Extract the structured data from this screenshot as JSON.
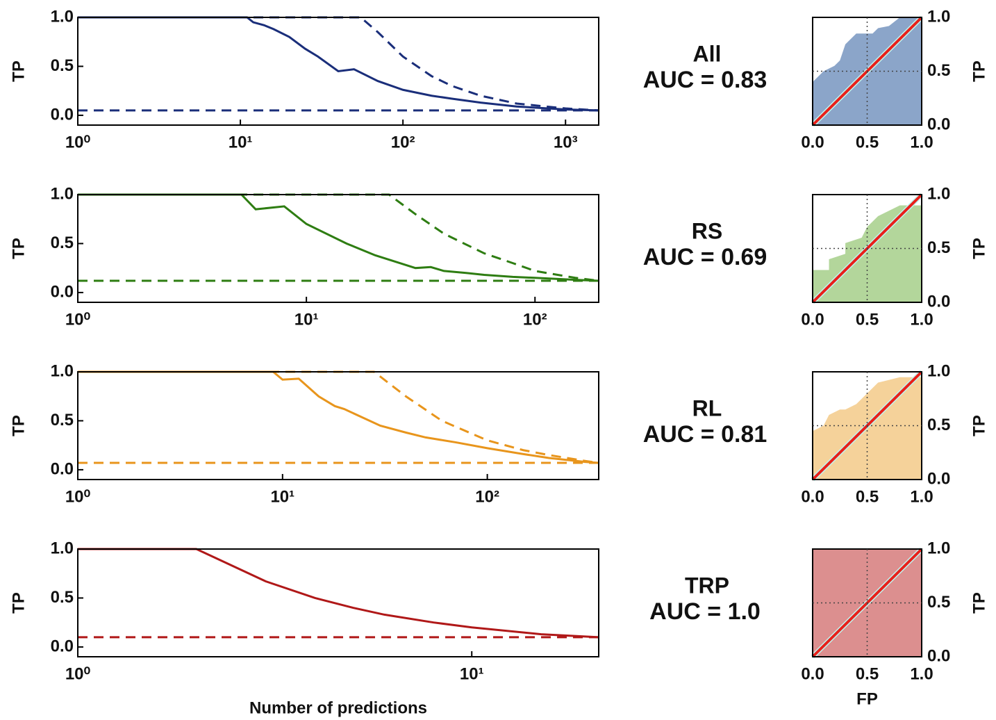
{
  "chart_data": [
    {
      "type": "line",
      "ylabel": "TP",
      "xscale": "log",
      "xlim": [
        1,
        1600
      ],
      "ylim": [
        -0.1,
        1.0
      ],
      "xticks": [
        {
          "value": 1,
          "label": "10⁰"
        },
        {
          "value": 10,
          "label": "10¹"
        },
        {
          "value": 100,
          "label": "10²"
        },
        {
          "value": 1000,
          "label": "10³"
        }
      ],
      "yticks": [
        {
          "value": 0,
          "label": "0.0"
        },
        {
          "value": 0.5,
          "label": "0.5"
        },
        {
          "value": 1,
          "label": "1.0"
        }
      ],
      "series": [
        {
          "color": "#1a2e7a",
          "dashed": false,
          "x": [
            1,
            11,
            12,
            14,
            16,
            20,
            25,
            30,
            40,
            50,
            70,
            100,
            150,
            200,
            300,
            500,
            1000,
            1600
          ],
          "values": [
            1,
            1,
            0.95,
            0.92,
            0.88,
            0.8,
            0.68,
            0.6,
            0.45,
            0.47,
            0.35,
            0.26,
            0.2,
            0.17,
            0.13,
            0.09,
            0.06,
            0.05
          ]
        },
        {
          "color": "#1a2e7a",
          "dashed": true,
          "x": [
            1,
            55,
            70,
            100,
            150,
            200,
            300,
            500,
            1000,
            1600
          ],
          "values": [
            1,
            1,
            0.85,
            0.6,
            0.4,
            0.3,
            0.2,
            0.12,
            0.07,
            0.05
          ]
        },
        {
          "color": "#1a2e7a",
          "dashed": true,
          "x": [
            1,
            1600
          ],
          "values": [
            0.05,
            0.05
          ]
        }
      ]
    },
    {
      "type": "area",
      "title": "All",
      "annotation": "AUC = 0.83",
      "ylabel": "TP",
      "color": "#8ba5c9",
      "grid": "dotted",
      "xlim": [
        0,
        1
      ],
      "ylim": [
        0,
        1
      ],
      "xticks": [
        {
          "value": 0,
          "label": "0.0"
        },
        {
          "value": 0.5,
          "label": "0.5"
        },
        {
          "value": 1,
          "label": "1.0"
        }
      ],
      "yticks": [
        {
          "value": 0,
          "label": "0.0"
        },
        {
          "value": 0.5,
          "label": "0.5"
        },
        {
          "value": 1,
          "label": "1.0"
        }
      ],
      "x": [
        0,
        0,
        0.05,
        0.1,
        0.2,
        0.25,
        0.3,
        0.35,
        0.4,
        0.55,
        0.6,
        0.7,
        0.8,
        1
      ],
      "values": [
        0,
        0.4,
        0.45,
        0.5,
        0.55,
        0.6,
        0.75,
        0.8,
        0.85,
        0.85,
        0.9,
        0.92,
        1,
        1
      ]
    },
    {
      "type": "line",
      "ylabel": "TP",
      "xscale": "log",
      "xlim": [
        1,
        190
      ],
      "ylim": [
        -0.1,
        1.0
      ],
      "xticks": [
        {
          "value": 1,
          "label": "10⁰"
        },
        {
          "value": 10,
          "label": "10¹"
        },
        {
          "value": 100,
          "label": "10²"
        }
      ],
      "yticks": [
        {
          "value": 0,
          "label": "0.0"
        },
        {
          "value": 0.5,
          "label": "0.5"
        },
        {
          "value": 1,
          "label": "1.0"
        }
      ],
      "series": [
        {
          "color": "#2e7d12",
          "dashed": false,
          "x": [
            1,
            5.2,
            6,
            8,
            10,
            15,
            20,
            30,
            35,
            40,
            50,
            60,
            80,
            100,
            150,
            190
          ],
          "values": [
            1,
            1,
            0.85,
            0.88,
            0.7,
            0.5,
            0.38,
            0.25,
            0.26,
            0.22,
            0.2,
            0.18,
            0.16,
            0.15,
            0.13,
            0.12
          ]
        },
        {
          "color": "#2e7d12",
          "dashed": true,
          "x": [
            1,
            23,
            30,
            40,
            60,
            80,
            100,
            150,
            190
          ],
          "values": [
            1,
            1,
            0.8,
            0.6,
            0.4,
            0.3,
            0.22,
            0.15,
            0.12
          ]
        },
        {
          "color": "#2e7d12",
          "dashed": true,
          "x": [
            1,
            190
          ],
          "values": [
            0.12,
            0.12
          ]
        }
      ]
    },
    {
      "type": "area",
      "title": "RS",
      "annotation": "AUC = 0.69",
      "ylabel": "TP",
      "color": "#b3d69b",
      "grid": "dotted",
      "xlim": [
        0,
        1
      ],
      "ylim": [
        0,
        1
      ],
      "xticks": [
        {
          "value": 0,
          "label": "0.0"
        },
        {
          "value": 0.5,
          "label": "0.5"
        },
        {
          "value": 1,
          "label": "1.0"
        }
      ],
      "yticks": [
        {
          "value": 0,
          "label": "0.0"
        },
        {
          "value": 0.5,
          "label": "0.5"
        },
        {
          "value": 1,
          "label": "1.0"
        }
      ],
      "x": [
        0,
        0,
        0.15,
        0.15,
        0.3,
        0.3,
        0.45,
        0.5,
        0.6,
        0.8,
        1
      ],
      "values": [
        0,
        0.3,
        0.3,
        0.4,
        0.45,
        0.55,
        0.6,
        0.7,
        0.8,
        0.9,
        0.9
      ]
    },
    {
      "type": "line",
      "ylabel": "TP",
      "xscale": "log",
      "xlim": [
        1,
        350
      ],
      "ylim": [
        -0.1,
        1.0
      ],
      "xticks": [
        {
          "value": 1,
          "label": "10⁰"
        },
        {
          "value": 10,
          "label": "10¹"
        },
        {
          "value": 100,
          "label": "10²"
        }
      ],
      "yticks": [
        {
          "value": 0,
          "label": "0.0"
        },
        {
          "value": 0.5,
          "label": "0.5"
        },
        {
          "value": 1,
          "label": "1.0"
        }
      ],
      "series": [
        {
          "color": "#e8951c",
          "dashed": false,
          "x": [
            1,
            9,
            10,
            12,
            15,
            18,
            20,
            30,
            40,
            50,
            70,
            100,
            150,
            200,
            300,
            350
          ],
          "values": [
            1,
            1,
            0.92,
            0.93,
            0.75,
            0.65,
            0.62,
            0.45,
            0.38,
            0.33,
            0.28,
            0.22,
            0.16,
            0.12,
            0.08,
            0.07
          ]
        },
        {
          "color": "#e8951c",
          "dashed": true,
          "x": [
            1,
            28,
            40,
            60,
            100,
            150,
            200,
            300,
            350
          ],
          "values": [
            1,
            1,
            0.75,
            0.5,
            0.3,
            0.2,
            0.15,
            0.09,
            0.07
          ]
        },
        {
          "color": "#e8951c",
          "dashed": true,
          "x": [
            1,
            350
          ],
          "values": [
            0.07,
            0.07
          ]
        }
      ]
    },
    {
      "type": "area",
      "title": "RL",
      "annotation": "AUC = 0.81",
      "ylabel": "TP",
      "color": "#f5d29a",
      "grid": "dotted",
      "xlim": [
        0,
        1
      ],
      "ylim": [
        0,
        1
      ],
      "xticks": [
        {
          "value": 0,
          "label": "0.0"
        },
        {
          "value": 0.5,
          "label": "0.5"
        },
        {
          "value": 1,
          "label": "1.0"
        }
      ],
      "yticks": [
        {
          "value": 0,
          "label": "0.0"
        },
        {
          "value": 0.5,
          "label": "0.5"
        },
        {
          "value": 1,
          "label": "1.0"
        }
      ],
      "x": [
        0,
        0,
        0.1,
        0.15,
        0.25,
        0.3,
        0.4,
        0.45,
        0.55,
        0.6,
        0.8,
        1
      ],
      "values": [
        0,
        0.45,
        0.5,
        0.6,
        0.65,
        0.65,
        0.7,
        0.75,
        0.85,
        0.9,
        0.95,
        0.95
      ]
    },
    {
      "type": "line",
      "ylabel": "TP",
      "xlabel": "Number of predictions",
      "xscale": "log",
      "xlim": [
        1,
        21
      ],
      "ylim": [
        -0.1,
        1.0
      ],
      "xticks": [
        {
          "value": 1,
          "label": "10⁰"
        },
        {
          "value": 10,
          "label": "10¹"
        }
      ],
      "yticks": [
        {
          "value": 0,
          "label": "0.0"
        },
        {
          "value": 0.5,
          "label": "0.5"
        },
        {
          "value": 1,
          "label": "1.0"
        }
      ],
      "series": [
        {
          "color": "#b01818",
          "dashed": false,
          "x": [
            1,
            2,
            3,
            4,
            5,
            6,
            8,
            10,
            15,
            21
          ],
          "values": [
            1,
            1,
            0.67,
            0.5,
            0.4,
            0.33,
            0.25,
            0.2,
            0.13,
            0.1
          ]
        },
        {
          "color": "#b01818",
          "dashed": true,
          "x": [
            1,
            21
          ],
          "values": [
            0.1,
            0.1
          ]
        }
      ]
    },
    {
      "type": "area",
      "title": "TRP",
      "annotation": "AUC = 1.0",
      "ylabel": "TP",
      "xlabel": "FP",
      "color": "#dc8f8f",
      "grid": "dotted",
      "xlim": [
        0,
        1
      ],
      "ylim": [
        0,
        1
      ],
      "xticks": [
        {
          "value": 0,
          "label": "0.0"
        },
        {
          "value": 0.5,
          "label": "0.5"
        },
        {
          "value": 1,
          "label": "1.0"
        }
      ],
      "yticks": [
        {
          "value": 0,
          "label": "0.0"
        },
        {
          "value": 0.5,
          "label": "0.5"
        },
        {
          "value": 1,
          "label": "1.0"
        }
      ],
      "x": [
        0,
        1
      ],
      "values": [
        1,
        1
      ]
    }
  ]
}
